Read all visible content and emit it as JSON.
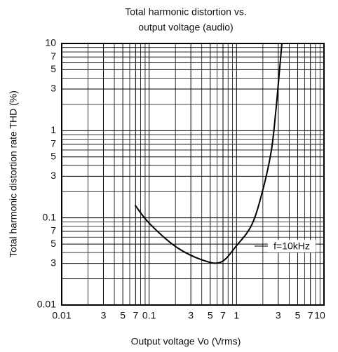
{
  "chart_data": {
    "type": "line",
    "title": [
      "Total harmonic distortion vs.",
      "output voltage (audio)"
    ],
    "xlabel": "Output voltage Vo (Vrms)",
    "ylabel": "Total harmonic distortion rate THD (%)",
    "xscale": "log",
    "yscale": "log",
    "grid": true,
    "xlim": [
      0.01,
      10
    ],
    "ylim": [
      0.01,
      10
    ],
    "xticks": [
      0.01,
      {
        "value": 0.03,
        "label": "3"
      },
      {
        "value": 0.05,
        "label": "5"
      },
      {
        "value": 0.07,
        "label": "7"
      },
      0.1,
      {
        "value": 0.3,
        "label": "3"
      },
      {
        "value": 0.5,
        "label": "5"
      },
      {
        "value": 0.7,
        "label": "7"
      },
      1,
      {
        "value": 3,
        "label": "3"
      },
      {
        "value": 5,
        "label": "5"
      },
      {
        "value": 7,
        "label": "7"
      },
      10
    ],
    "yticks": [
      0.01,
      {
        "value": 0.03,
        "label": "3"
      },
      {
        "value": 0.05,
        "label": "5"
      },
      {
        "value": 0.07,
        "label": "7"
      },
      0.1,
      {
        "value": 0.3,
        "label": "3"
      },
      {
        "value": 0.5,
        "label": "5"
      },
      {
        "value": 0.7,
        "label": "7"
      },
      1,
      {
        "value": 3,
        "label": "3"
      },
      {
        "value": 5,
        "label": "5"
      },
      {
        "value": 7,
        "label": "7"
      },
      10
    ],
    "xminor": [
      0.02,
      0.04,
      0.06,
      0.08,
      0.09,
      0.2,
      0.4,
      0.6,
      0.8,
      0.9,
      2,
      4,
      6,
      8,
      9
    ],
    "yminor": [
      0.02,
      0.04,
      0.06,
      0.08,
      0.09,
      0.2,
      0.4,
      0.6,
      0.8,
      0.9,
      2,
      4,
      6,
      8,
      9
    ],
    "series": [
      {
        "name": "f=10kHz",
        "color": "#000000",
        "x": [
          0.069,
          0.1,
          0.2,
          0.4,
          0.66,
          1,
          1.5,
          2,
          2.5,
          2.8,
          3,
          3.3
        ],
        "values": [
          0.14,
          0.087,
          0.047,
          0.033,
          0.031,
          0.048,
          0.084,
          0.21,
          0.59,
          1.6,
          3.4,
          10
        ]
      }
    ]
  }
}
